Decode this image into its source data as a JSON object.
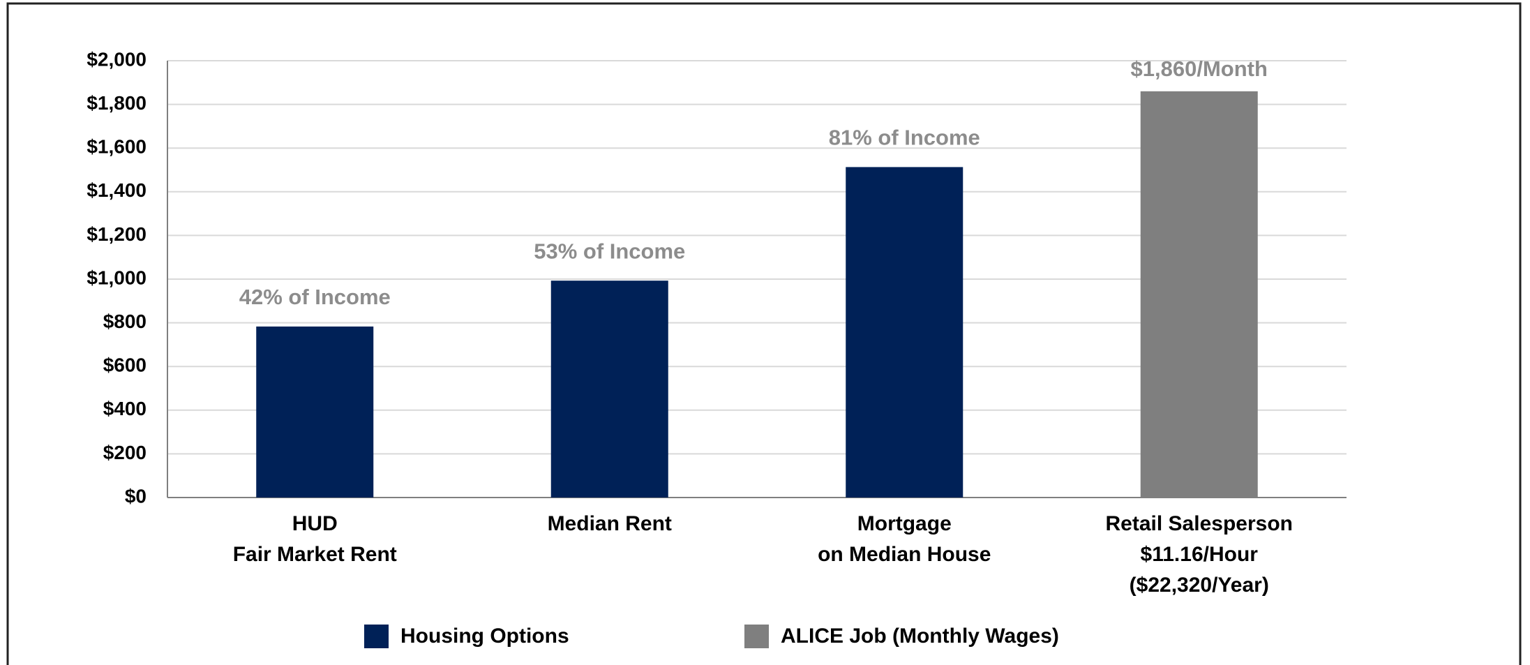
{
  "chart_data": {
    "type": "bar",
    "categories": [
      "HUD\nFair Market Rent",
      "Median Rent",
      "Mortgage\non Median House",
      "Retail Salesperson\n$11.16/Hour\n($22,320/Year)"
    ],
    "series": [
      {
        "name": "Housing Options",
        "color": "#002157",
        "values": [
          783,
          993,
          1513,
          null
        ]
      },
      {
        "name": "ALICE Job (Monthly Wages)",
        "color": "#7f7f7f",
        "values": [
          null,
          null,
          null,
          1860
        ],
        "value_labels": [
          null,
          null,
          null,
          "$1,860/Month"
        ]
      }
    ],
    "annotations": [
      "42% of Income",
      "53% of Income",
      "81% of Income"
    ],
    "ylim": [
      0,
      2000
    ],
    "yticks": [
      {
        "value": 0,
        "label": "$0"
      },
      {
        "value": 200,
        "label": "$200"
      },
      {
        "value": 400,
        "label": "$400"
      },
      {
        "value": 600,
        "label": "$600"
      },
      {
        "value": 800,
        "label": "$800"
      },
      {
        "value": 1000,
        "label": "$1,000"
      },
      {
        "value": 1200,
        "label": "$1,200"
      },
      {
        "value": 1400,
        "label": "$1,400"
      },
      {
        "value": 1600,
        "label": "$1,600"
      },
      {
        "value": 1800,
        "label": "$1,800"
      },
      {
        "value": 2000,
        "label": "$2,000"
      }
    ],
    "grid": true
  }
}
